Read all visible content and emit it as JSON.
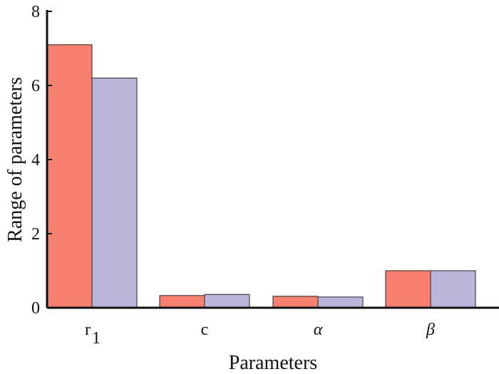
{
  "chart_data": {
    "type": "bar",
    "categories": [
      "r",
      "c",
      "α",
      "β"
    ],
    "category_subscripts": [
      "1",
      "",
      "",
      ""
    ],
    "series": [
      {
        "color": "#f88070",
        "values": [
          7.1,
          0.33,
          0.31,
          1.0
        ]
      },
      {
        "color": "#bab5da",
        "values": [
          6.2,
          0.36,
          0.29,
          1.0
        ]
      }
    ],
    "title": "",
    "xlabel": "Parameters",
    "ylabel": "Range of parameters",
    "ylim": [
      0,
      8
    ],
    "yticks": [
      0,
      2,
      4,
      6,
      8
    ],
    "grid": false,
    "legend": "none"
  }
}
